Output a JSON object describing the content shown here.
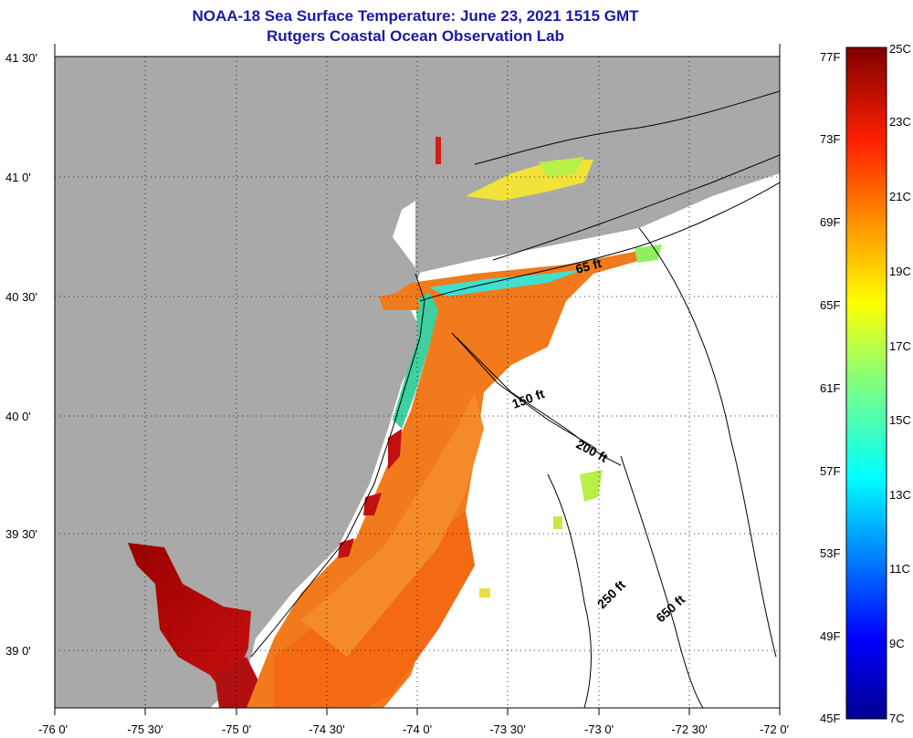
{
  "title": {
    "line1": "NOAA-18 Sea Surface Temperature:  June 23, 2021 1515 GMT",
    "line2": "Rutgers Coastal Ocean Observation Lab"
  },
  "map": {
    "lat_ticks": [
      "41 30'",
      "41 0'",
      "40 30'",
      "40 0'",
      "39 30'",
      "39 0'"
    ],
    "lon_ticks": [
      "-76 0'",
      "-75 30'",
      "-75 0'",
      "-74 30'",
      "-74 0'",
      "-73 30'",
      "-73 0'",
      "-72 30'",
      "-72 0'"
    ],
    "isobath_labels": [
      "65 ft",
      "150 ft",
      "200 ft",
      "250 ft",
      "650 ft"
    ],
    "colors": {
      "land": "#a9a9a9",
      "nodata": "#ffffff",
      "sst_dominant": "#f07a1c"
    }
  },
  "colorbar": {
    "fahrenheit_labels": [
      "77F",
      "73F",
      "69F",
      "65F",
      "61F",
      "57F",
      "53F",
      "49F",
      "45F"
    ],
    "celsius_labels": [
      "25C",
      "23C",
      "21C",
      "19C",
      "17C",
      "15C",
      "13C",
      "11C",
      "9C",
      "7C"
    ],
    "min_c": 7,
    "max_c": 25
  }
}
